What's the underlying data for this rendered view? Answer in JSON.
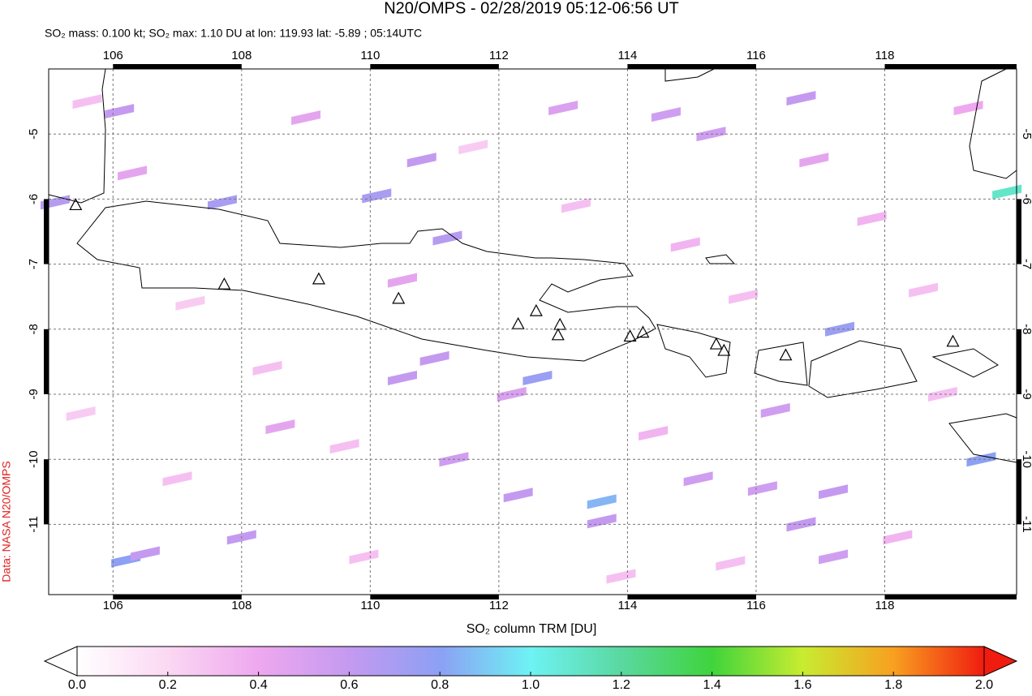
{
  "chart_data": {
    "type": "map",
    "title": "N20/OMPS - 02/28/2019 05:12-06:56 UT",
    "subtitle": "SO₂ mass: 0.100 kt; SO₂ max: 1.10 DU at lon: 119.93 lat: -5.89 ; 05:14UTC",
    "source": "Data: NASA N20/OMPS",
    "colorbar_label": "SO₂ column TRM [DU]",
    "xlim": [
      105,
      120.05
    ],
    "ylim": [
      -12.08,
      -4
    ],
    "xticks": [
      106,
      108,
      110,
      112,
      114,
      116,
      118
    ],
    "yticks": [
      -5,
      -6,
      -7,
      -8,
      -9,
      -10,
      -11
    ],
    "clim": [
      0,
      2
    ],
    "colormap": [
      "#ffffff",
      "#fbd8f3",
      "#eea8ef",
      "#c49af0",
      "#8ca0f4",
      "#6ef2f4",
      "#5ad8a0",
      "#3fd43c",
      "#c8ec30",
      "#f8a020",
      "#f01c10"
    ],
    "colorbar_ticks": [
      {
        "value": 0,
        "label": "0.0"
      },
      {
        "value": 0.2,
        "label": "0.2"
      },
      {
        "value": 0.4,
        "label": "0.4"
      },
      {
        "value": 0.6,
        "label": "0.6"
      },
      {
        "value": 0.8,
        "label": "0.8"
      },
      {
        "value": 1,
        "label": "1.0"
      },
      {
        "value": 1.2,
        "label": "1.2"
      },
      {
        "value": 1.4,
        "label": "1.4"
      },
      {
        "value": 1.6,
        "label": "1.6"
      },
      {
        "value": 1.8,
        "label": "1.8"
      },
      {
        "value": 2,
        "label": "2.0"
      }
    ],
    "pixels": [
      {
        "lon": 105.1,
        "lat": -6.05,
        "value": 0.65
      },
      {
        "lon": 106.1,
        "lat": -4.65,
        "value": 0.6
      },
      {
        "lon": 107.7,
        "lat": -6.05,
        "value": 0.7
      },
      {
        "lon": 110.1,
        "lat": -5.95,
        "value": 0.7
      },
      {
        "lon": 110.8,
        "lat": -5.4,
        "value": 0.6
      },
      {
        "lon": 111.2,
        "lat": -6.6,
        "value": 0.65
      },
      {
        "lon": 112.6,
        "lat": -8.75,
        "value": 0.75
      },
      {
        "lon": 112.2,
        "lat": -9.0,
        "value": 0.5
      },
      {
        "lon": 111.0,
        "lat": -8.45,
        "value": 0.6
      },
      {
        "lon": 110.5,
        "lat": -8.75,
        "value": 0.6
      },
      {
        "lon": 111.3,
        "lat": -10.0,
        "value": 0.55
      },
      {
        "lon": 112.3,
        "lat": -10.55,
        "value": 0.6
      },
      {
        "lon": 113.6,
        "lat": -10.65,
        "value": 0.85
      },
      {
        "lon": 113.6,
        "lat": -10.95,
        "value": 0.6
      },
      {
        "lon": 106.2,
        "lat": -11.55,
        "value": 0.8
      },
      {
        "lon": 106.5,
        "lat": -11.45,
        "value": 0.6
      },
      {
        "lon": 108.0,
        "lat": -11.2,
        "value": 0.6
      },
      {
        "lon": 115.3,
        "lat": -5.0,
        "value": 0.55
      },
      {
        "lon": 116.7,
        "lat": -4.45,
        "value": 0.6
      },
      {
        "lon": 119.9,
        "lat": -5.89,
        "value": 1.1
      },
      {
        "lon": 119.5,
        "lat": -10.0,
        "value": 0.8
      },
      {
        "lon": 117.3,
        "lat": -8.0,
        "value": 0.75
      },
      {
        "lon": 116.3,
        "lat": -9.25,
        "value": 0.55
      },
      {
        "lon": 117.2,
        "lat": -10.5,
        "value": 0.6
      },
      {
        "lon": 116.1,
        "lat": -10.45,
        "value": 0.55
      },
      {
        "lon": 115.1,
        "lat": -10.3,
        "value": 0.55
      },
      {
        "lon": 116.7,
        "lat": -11.0,
        "value": 0.6
      },
      {
        "lon": 117.2,
        "lat": -11.5,
        "value": 0.55
      },
      {
        "lon": 110.5,
        "lat": -7.25,
        "value": 0.45
      },
      {
        "lon": 108.6,
        "lat": -9.5,
        "value": 0.45
      },
      {
        "lon": 114.6,
        "lat": -4.7,
        "value": 0.55
      },
      {
        "lon": 113.0,
        "lat": -4.6,
        "value": 0.5
      },
      {
        "lon": 109.0,
        "lat": -4.75,
        "value": 0.45
      },
      {
        "lon": 106.3,
        "lat": -5.6,
        "value": 0.45
      },
      {
        "lon": 105.6,
        "lat": -4.5,
        "value": 0.3
      },
      {
        "lon": 107.2,
        "lat": -7.6,
        "value": 0.25
      },
      {
        "lon": 108.4,
        "lat": -8.6,
        "value": 0.3
      },
      {
        "lon": 109.6,
        "lat": -9.8,
        "value": 0.3
      },
      {
        "lon": 111.6,
        "lat": -5.2,
        "value": 0.25
      },
      {
        "lon": 113.2,
        "lat": -6.1,
        "value": 0.3
      },
      {
        "lon": 114.9,
        "lat": -6.7,
        "value": 0.35
      },
      {
        "lon": 115.8,
        "lat": -7.5,
        "value": 0.3
      },
      {
        "lon": 117.8,
        "lat": -6.3,
        "value": 0.35
      },
      {
        "lon": 118.6,
        "lat": -7.4,
        "value": 0.3
      },
      {
        "lon": 118.9,
        "lat": -9.0,
        "value": 0.3
      },
      {
        "lon": 114.4,
        "lat": -9.6,
        "value": 0.35
      },
      {
        "lon": 115.6,
        "lat": -11.6,
        "value": 0.3
      },
      {
        "lon": 109.9,
        "lat": -11.5,
        "value": 0.3
      },
      {
        "lon": 107.0,
        "lat": -10.3,
        "value": 0.3
      },
      {
        "lon": 105.5,
        "lat": -9.3,
        "value": 0.25
      },
      {
        "lon": 113.9,
        "lat": -11.8,
        "value": 0.3
      },
      {
        "lon": 118.2,
        "lat": -11.2,
        "value": 0.35
      },
      {
        "lon": 119.3,
        "lat": -4.6,
        "value": 0.4
      },
      {
        "lon": 116.9,
        "lat": -5.4,
        "value": 0.45
      }
    ],
    "volcanoes": {
      "lon": [
        105.42,
        107.73,
        109.2,
        110.44,
        112.3,
        112.58,
        112.95,
        112.92,
        114.04,
        114.24,
        115.38,
        115.5,
        116.46,
        119.06
      ],
      "lat": [
        -6.1,
        -7.32,
        -7.24,
        -7.54,
        -7.93,
        -7.73,
        -7.94,
        -8.1,
        -8.12,
        -8.06,
        -8.24,
        -8.34,
        -8.41,
        -8.2
      ]
    }
  }
}
